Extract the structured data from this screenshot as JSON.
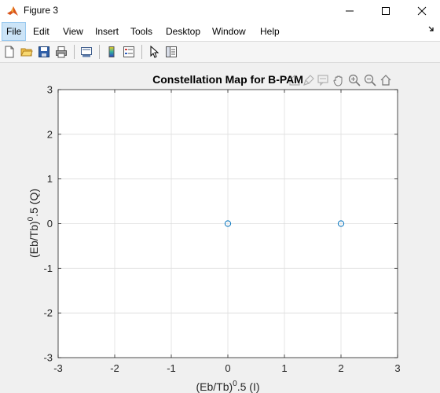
{
  "window": {
    "title": "Figure 3",
    "controls": {
      "minimize": "minimize",
      "maximize": "maximize",
      "close": "close"
    }
  },
  "menubar": {
    "items": [
      {
        "label": "File",
        "active": true
      },
      {
        "label": "Edit"
      },
      {
        "label": "View"
      },
      {
        "label": "Insert"
      },
      {
        "label": "Tools"
      },
      {
        "label": "Desktop"
      },
      {
        "label": "Window"
      },
      {
        "label": "Help"
      }
    ]
  },
  "toolbar": {
    "buttons": [
      "new-figure-icon",
      "open-folder-icon",
      "save-icon",
      "print-icon",
      "link-plot-icon",
      "colorbar-icon",
      "legend-icon",
      "edit-plot-pointer-icon",
      "property-inspector-icon"
    ]
  },
  "axes_toolbar": {
    "buttons": [
      "export-icon",
      "brush-icon",
      "data-tips-icon",
      "pan-icon",
      "zoom-in-icon",
      "zoom-out-icon",
      "restore-view-icon"
    ]
  },
  "chart_data": {
    "type": "scatter",
    "title": "Constellation Map for B-PAM",
    "xlabel": "(Eb/Tb)0.5 (I)",
    "xlabel_parts": {
      "base": "(Eb/Tb)",
      "sup": "0",
      "rest": ".5 (I)"
    },
    "ylabel": "(Eb/Tb)0.5 (Q)",
    "ylabel_parts": {
      "base": "(Eb/Tb)",
      "sup": "0",
      "rest": ".5 (Q)"
    },
    "xlim": [
      -3,
      3
    ],
    "ylim": [
      -3,
      3
    ],
    "xticks": [
      "-3",
      "-2",
      "-1",
      "0",
      "1",
      "2",
      "3"
    ],
    "yticks": [
      "-3",
      "-2",
      "-1",
      "0",
      "1",
      "2",
      "3"
    ],
    "grid": true,
    "marker": "circle-open",
    "series": [
      {
        "x": [
          0,
          2
        ],
        "y": [
          0,
          0
        ],
        "color": "#0072bd"
      }
    ]
  }
}
